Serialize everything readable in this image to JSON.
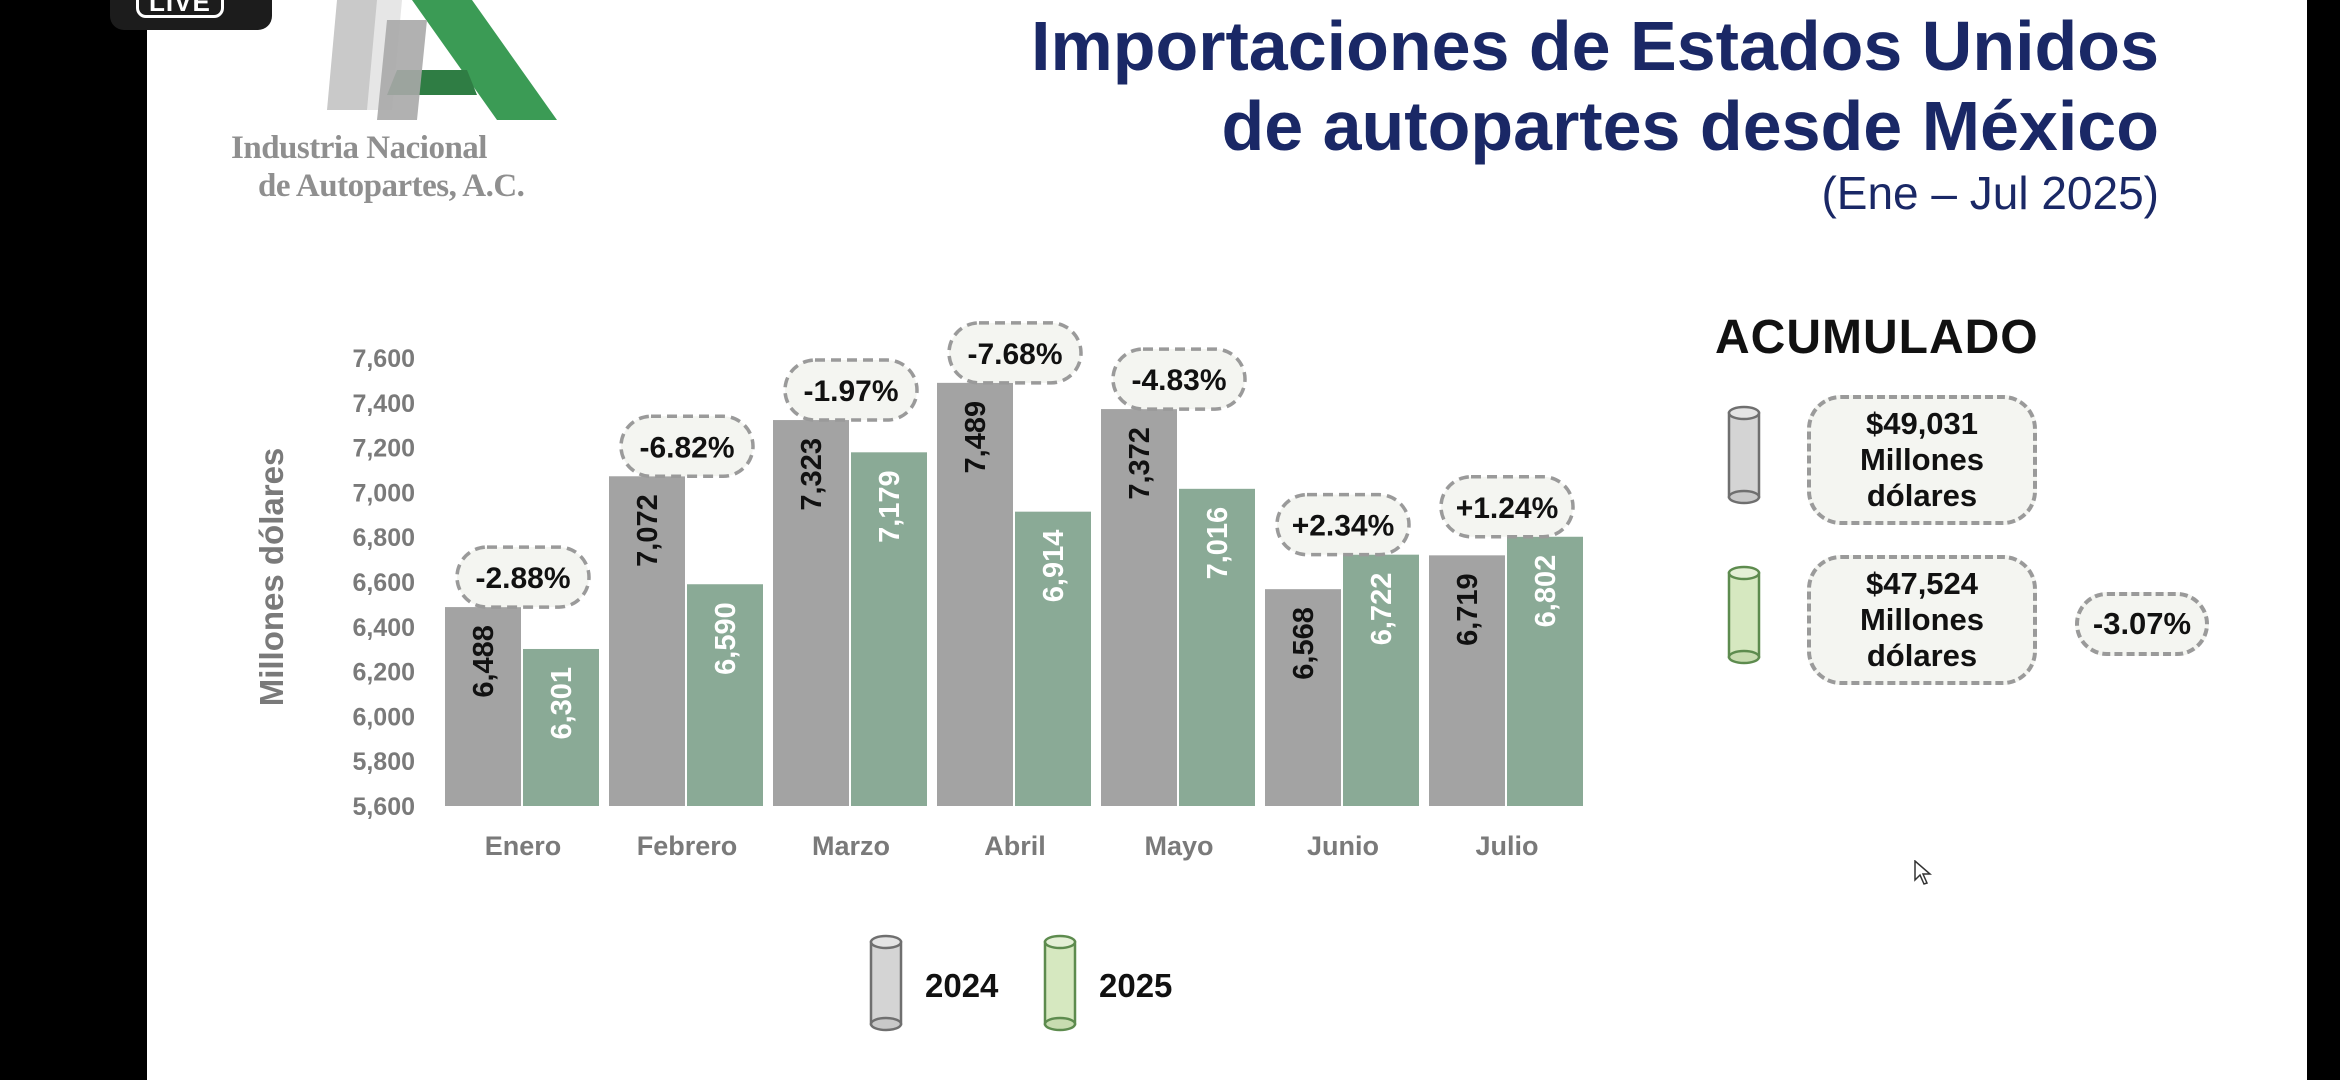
{
  "badge": {
    "label": "LIVE"
  },
  "logo": {
    "line1": "Industria Nacional",
    "line2": "de Autopartes, A.C."
  },
  "header": {
    "title_line1": "Importaciones de Estados Unidos",
    "title_line2": "de autopartes desde México",
    "subtitle": "(Ene – Jul 2025)"
  },
  "colors": {
    "bar_2024": "#a3a3a3",
    "bar_2025": "#8aaa96",
    "title": "#1a2866",
    "legend_2025": "#d6e8c0"
  },
  "chart_data": {
    "type": "bar",
    "ylabel": "Millones dólares",
    "xlabel": "",
    "ylim": [
      5600,
      7600
    ],
    "yticks": [
      5600,
      5800,
      6000,
      6200,
      6400,
      6600,
      6800,
      7000,
      7200,
      7400,
      7600
    ],
    "ytick_labels": [
      "5,600",
      "5,800",
      "6,000",
      "6,200",
      "6,400",
      "6,600",
      "6,800",
      "7,000",
      "7,200",
      "7,400",
      "7,600"
    ],
    "categories": [
      "Enero",
      "Febrero",
      "Marzo",
      "Abril",
      "Mayo",
      "Junio",
      "Julio"
    ],
    "series": [
      {
        "name": "2024",
        "values": [
          6488,
          7072,
          7323,
          7489,
          7372,
          6568,
          6719
        ],
        "labels": [
          "6,488",
          "7,072",
          "7,323",
          "7,489",
          "7,372",
          "6,568",
          "6,719"
        ]
      },
      {
        "name": "2025",
        "values": [
          6301,
          6590,
          7179,
          6914,
          7016,
          6722,
          6802
        ],
        "labels": [
          "6,301",
          "6,590",
          "7,179",
          "6,914",
          "7,016",
          "6,722",
          "6,802"
        ]
      }
    ],
    "changes": [
      "-2.88%",
      "-6.82%",
      "-1.97%",
      "-7.68%",
      "-4.83%",
      "+2.34%",
      "+1.24%"
    ],
    "legend": [
      "2024",
      "2025"
    ],
    "legend_position": "bottom-center"
  },
  "acumulado": {
    "title": "ACUMULADO",
    "y2024": {
      "amount": "$49,031",
      "line2": "Millones",
      "line3": "dólares"
    },
    "y2025": {
      "amount": "$47,524",
      "line2": "Millones",
      "line3": "dólares"
    },
    "change": "-3.07%"
  }
}
